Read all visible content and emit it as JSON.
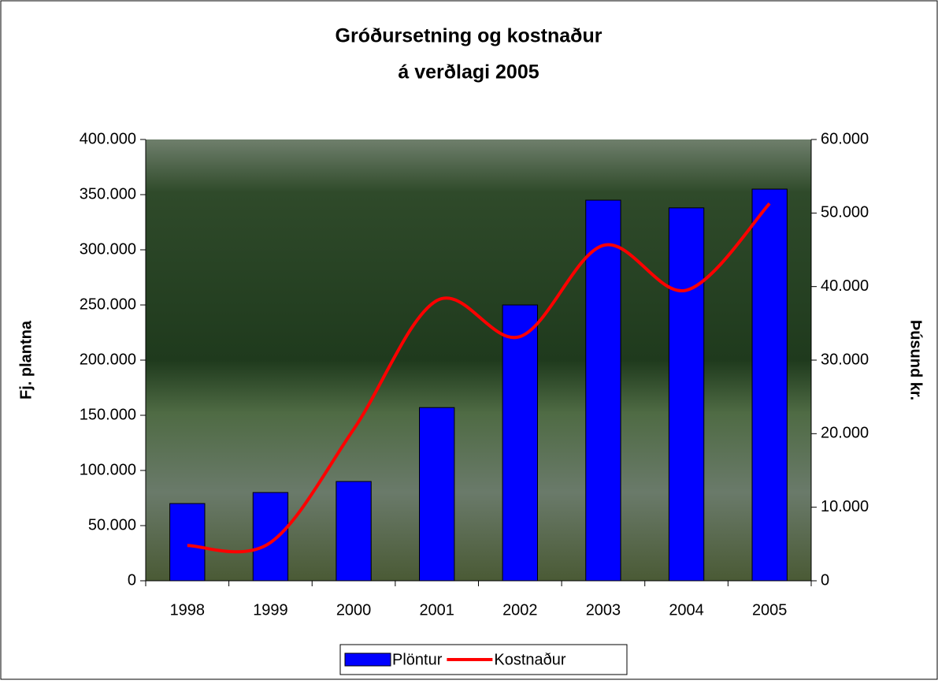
{
  "chart_data": {
    "type": "bar-line",
    "title": [
      "Gróðursetning og kostnaður",
      "á verðlagi 2005"
    ],
    "y_label": "Fj. plantna",
    "y2_label": "Þúsund kr.",
    "categories": [
      "1998",
      "1999",
      "2000",
      "2001",
      "2002",
      "2003",
      "2004",
      "2005"
    ],
    "series": [
      {
        "name": "Plöntur",
        "type": "bar",
        "color": "#0000ff",
        "values": [
          70000,
          80000,
          90000,
          157000,
          250000,
          345000,
          338000,
          355000
        ]
      },
      {
        "name": "Kostnaður",
        "type": "line",
        "axis": "y2",
        "color": "#ff0000",
        "values": [
          4800,
          5200,
          20600,
          38100,
          33200,
          45600,
          39500,
          51300
        ]
      }
    ],
    "ylim": [
      0,
      400000
    ],
    "yticks": [
      0,
      {
        "value": 50000,
        "label": "50.000"
      },
      {
        "value": 100000,
        "label": "100.000"
      },
      {
        "value": 150000,
        "label": "150.000"
      },
      {
        "value": 200000,
        "label": "200.000"
      },
      {
        "value": 250000,
        "label": "250.000"
      },
      {
        "value": 300000,
        "label": "300.000"
      },
      {
        "value": 350000,
        "label": "350.000"
      },
      {
        "value": 400000,
        "label": "400.000"
      }
    ],
    "y2lim": [
      0,
      60000
    ],
    "y2ticks": [
      0,
      {
        "value": 10000,
        "label": "10.000"
      },
      {
        "value": 20000,
        "label": "20.000"
      },
      {
        "value": 30000,
        "label": "30.000"
      },
      {
        "value": 40000,
        "label": "40.000"
      },
      {
        "value": 50000,
        "label": "50.000"
      },
      {
        "value": 60000,
        "label": "60.000"
      }
    ],
    "legend": "bottom"
  }
}
